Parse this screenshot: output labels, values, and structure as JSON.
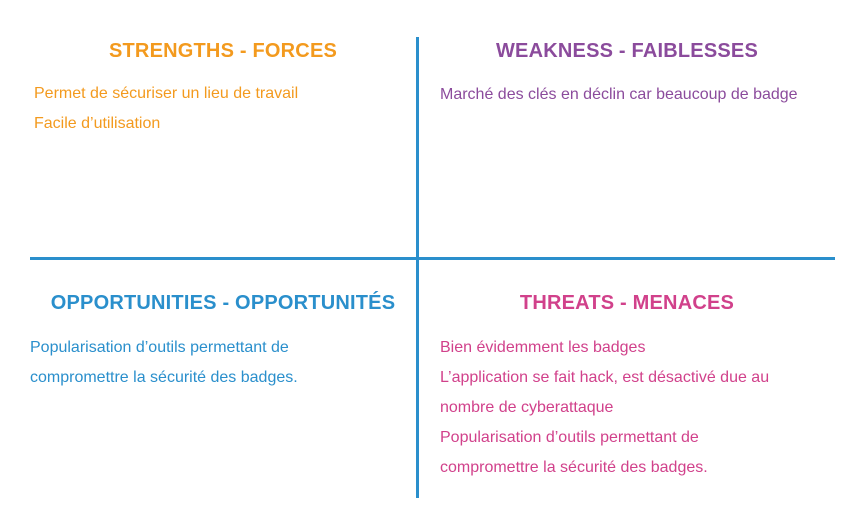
{
  "colors": {
    "strengths": "#f39a1e",
    "weakness": "#8b4b9c",
    "opportunities": "#2a8fcc",
    "threats": "#d1418b",
    "divider": "#2a8fcc"
  },
  "quadrants": {
    "strengths": {
      "title": "STRENGTHS - FORCES",
      "lines": [
        "Permet de sécuriser un lieu de travail",
        "Facile d’utilisation"
      ]
    },
    "weakness": {
      "title": "WEAKNESS - FAIBLESSES",
      "lines": [
        "Marché des clés en déclin car beaucoup de badge"
      ]
    },
    "opportunities": {
      "title": "OPPORTUNITIES - OPPORTUNITÉS",
      "lines": [
        "Popularisation d’outils permettant de",
        "compromettre la sécurité des badges."
      ]
    },
    "threats": {
      "title": "THREATS - MENACES",
      "lines": [
        "Bien évidemment les badges",
        "L’application se fait hack, est désactivé due au",
        "nombre de cyberattaque",
        "Popularisation d’outils permettant de",
        "compromettre la sécurité des badges."
      ]
    }
  }
}
